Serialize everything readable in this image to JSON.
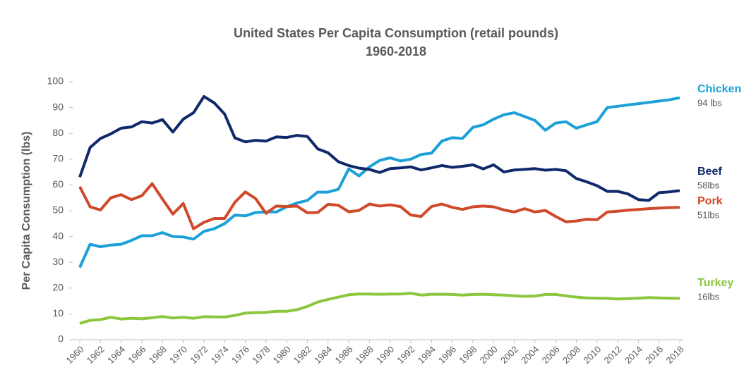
{
  "chart_data": {
    "type": "line",
    "title": "United States Per Capita Consumption (retail pounds)",
    "subtitle": "1960-2018",
    "y_label": "Per Capita Consumption (lbs)",
    "x": [
      1960,
      1961,
      1962,
      1963,
      1964,
      1965,
      1966,
      1967,
      1968,
      1969,
      1970,
      1971,
      1972,
      1973,
      1974,
      1975,
      1976,
      1977,
      1978,
      1979,
      1980,
      1981,
      1982,
      1983,
      1984,
      1985,
      1986,
      1987,
      1988,
      1989,
      1990,
      1991,
      1992,
      1993,
      1994,
      1995,
      1996,
      1997,
      1998,
      1999,
      2000,
      2001,
      2002,
      2003,
      2004,
      2005,
      2006,
      2007,
      2008,
      2009,
      2010,
      2011,
      2012,
      2013,
      2014,
      2015,
      2016,
      2017,
      2018
    ],
    "xlim": [
      1960,
      2018
    ],
    "xticks": [
      1960,
      1962,
      1964,
      1966,
      1968,
      1970,
      1972,
      1974,
      1976,
      1978,
      1980,
      1982,
      1984,
      1986,
      1988,
      1990,
      1992,
      1994,
      1996,
      1998,
      2000,
      2002,
      2004,
      2006,
      2008,
      2010,
      2012,
      2014,
      2016,
      2018
    ],
    "ylim": [
      0,
      100
    ],
    "yticks": [
      0,
      10,
      20,
      30,
      40,
      50,
      60,
      70,
      80,
      90,
      100
    ],
    "grid": false,
    "series": [
      {
        "name": "Chicken",
        "color": "#1ba1d8",
        "end_label": "94 lbs",
        "values": [
          28,
          37,
          36,
          36.7,
          37,
          38.5,
          40.3,
          40.3,
          41.5,
          40,
          39.8,
          39,
          42,
          43,
          45,
          48.3,
          48,
          49.3,
          49.5,
          49.5,
          51.5,
          53,
          54,
          57.2,
          57.2,
          58.3,
          66.2,
          63.5,
          67,
          69.5,
          70.5,
          69.3,
          70,
          71.8,
          72.3,
          77,
          78.3,
          78,
          82.3,
          83.3,
          85.5,
          87.2,
          88,
          86.5,
          85,
          81.2,
          84,
          84.5,
          82,
          83.3,
          84.5,
          90,
          90.5,
          91,
          91.5,
          92,
          92.5,
          93,
          93.8
        ]
      },
      {
        "name": "Beef",
        "color": "#10296b",
        "end_label": "58lbs",
        "values": [
          63,
          74.5,
          78,
          79.8,
          82,
          82.5,
          84.5,
          84,
          85.3,
          80.5,
          85.5,
          88,
          94.3,
          91.8,
          87.5,
          78.2,
          76.7,
          77.3,
          77,
          78.6,
          78.4,
          79.2,
          78.8,
          74,
          72.5,
          69,
          67.5,
          66.5,
          66,
          64.8,
          66.3,
          66.6,
          67,
          65.8,
          66.6,
          67.5,
          66.8,
          67.2,
          67.8,
          66.2,
          67.8,
          65,
          65.8,
          66,
          66.3,
          65.7,
          66,
          65.5,
          62.5,
          61.2,
          59.7,
          57.5,
          57.5,
          56.5,
          54.3,
          54,
          57,
          57.3,
          57.8
        ]
      },
      {
        "name": "Pork",
        "color": "#cf4a2a",
        "end_label": "51lbs",
        "values": [
          59.3,
          51.5,
          50.3,
          55,
          56.2,
          54.3,
          55.8,
          60.5,
          54.5,
          48.7,
          52.8,
          43,
          45.5,
          47,
          47,
          53.3,
          57.3,
          54.7,
          49,
          51.8,
          51.6,
          51.8,
          49.2,
          49.3,
          52.5,
          52.1,
          49.6,
          50.1,
          52.6,
          51.8,
          52.3,
          51.6,
          48.3,
          47.8,
          51.6,
          52.6,
          51.3,
          50.5,
          51.5,
          51.8,
          51.5,
          50.3,
          49.5,
          50.8,
          49.5,
          50.1,
          47.8,
          45.7,
          46,
          46.7,
          46.5,
          49.5,
          49.8,
          50.2,
          50.5,
          50.8,
          51,
          51.2,
          51.3
        ]
      },
      {
        "name": "Turkey",
        "color": "#8cc63e",
        "end_label": "16lbs",
        "values": [
          6.3,
          7.5,
          7.8,
          8.7,
          8,
          8.3,
          8.1,
          8.5,
          9,
          8.4,
          8.7,
          8.3,
          8.9,
          8.8,
          8.8,
          9.4,
          10.3,
          10.5,
          10.6,
          11,
          11,
          11.6,
          12.9,
          14.6,
          15.6,
          16.5,
          17.4,
          17.7,
          17.7,
          17.6,
          17.7,
          17.7,
          18,
          17.3,
          17.6,
          17.6,
          17.5,
          17.3,
          17.5,
          17.6,
          17.4,
          17.3,
          17,
          16.8,
          16.9,
          17.5,
          17.5,
          17,
          16.5,
          16.2,
          16.1,
          16,
          15.8,
          15.9,
          16.1,
          16.3,
          16.2,
          16.1,
          16
        ]
      }
    ]
  }
}
